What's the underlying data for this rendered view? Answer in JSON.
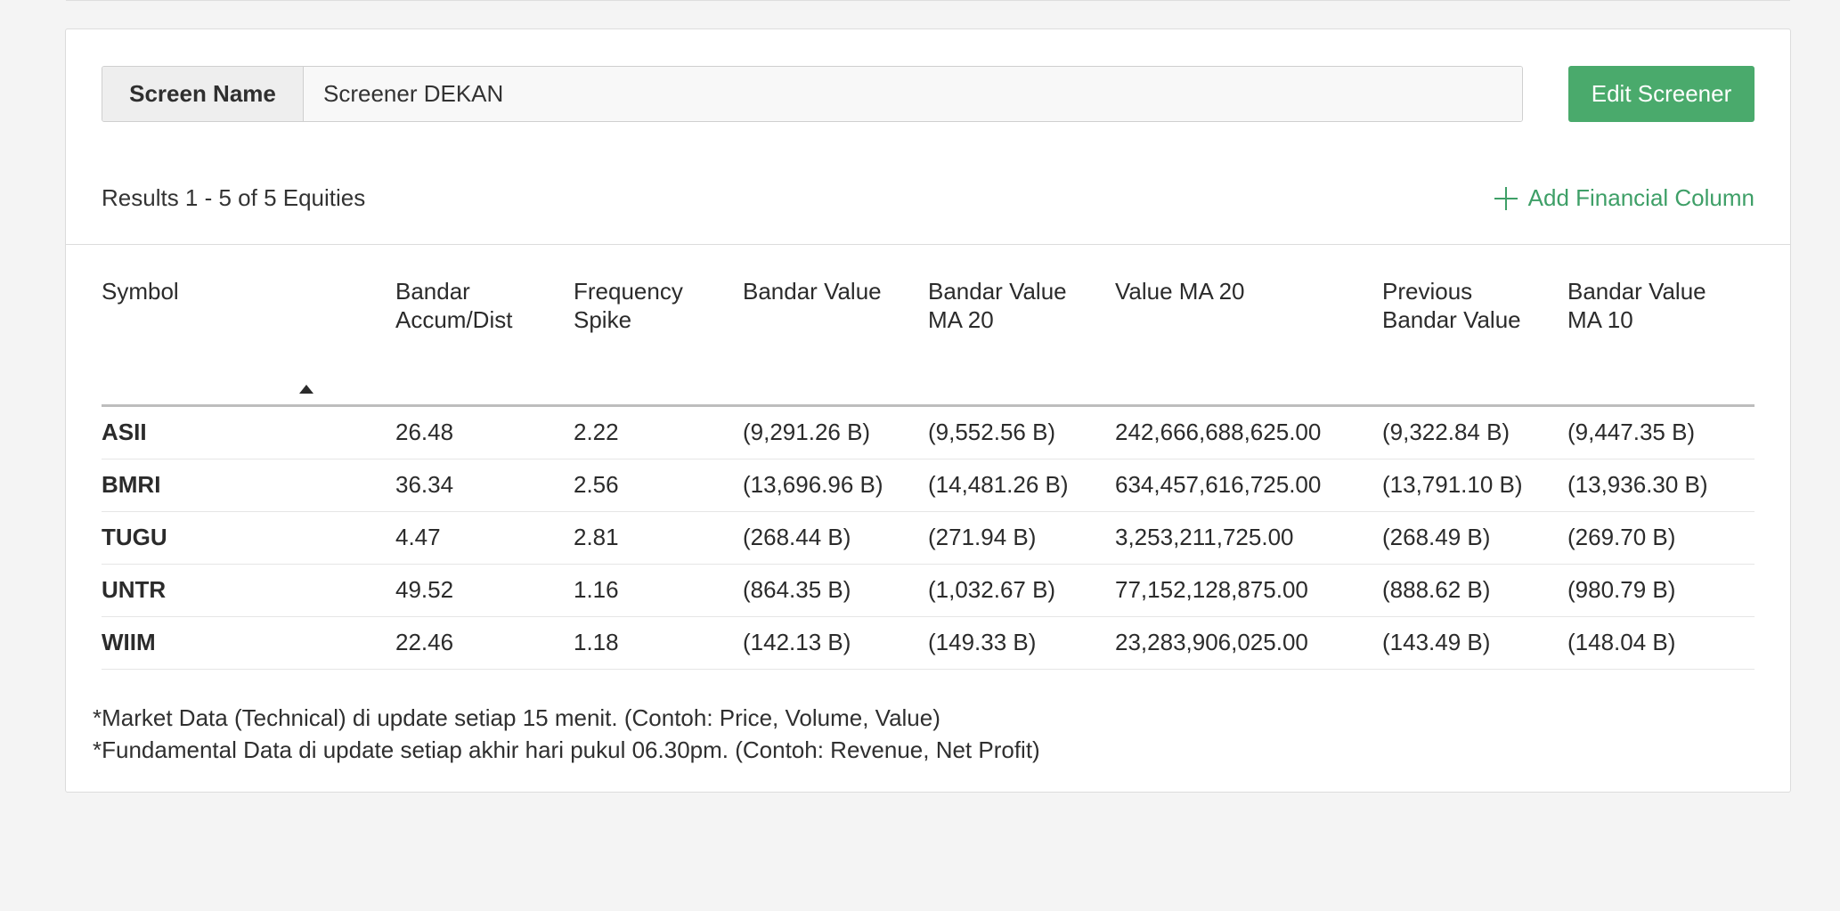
{
  "screen_name": {
    "label": "Screen Name",
    "value": "Screener DEKAN"
  },
  "edit_button": "Edit Screener",
  "results": {
    "text": "Results 1 - 5 of 5 Equities",
    "add_column": "Add Financial Column"
  },
  "table": {
    "columns": [
      "Symbol",
      "",
      "Bandar Accum/Dist",
      "Frequency Spike",
      "Bandar Value",
      "Bandar Value MA 20",
      "Value MA 20",
      "Previous Bandar Value",
      "Bandar Value MA 10"
    ],
    "rows": [
      [
        "ASII",
        "",
        "26.48",
        "2.22",
        "(9,291.26 B)",
        "(9,552.56 B)",
        "242,666,688,625.00",
        "(9,322.84 B)",
        "(9,447.35 B)"
      ],
      [
        "BMRI",
        "",
        "36.34",
        "2.56",
        "(13,696.96 B)",
        "(14,481.26 B)",
        "634,457,616,725.00",
        "(13,791.10 B)",
        "(13,936.30 B)"
      ],
      [
        "TUGU",
        "",
        "4.47",
        "2.81",
        "(268.44 B)",
        "(271.94 B)",
        "3,253,211,725.00",
        "(268.49 B)",
        "(269.70 B)"
      ],
      [
        "UNTR",
        "",
        "49.52",
        "1.16",
        "(864.35 B)",
        "(1,032.67 B)",
        "77,152,128,875.00",
        "(888.62 B)",
        "(980.79 B)"
      ],
      [
        "WIIM",
        "",
        "22.46",
        "1.18",
        "(142.13 B)",
        "(149.33 B)",
        "23,283,906,025.00",
        "(143.49 B)",
        "(148.04 B)"
      ]
    ]
  },
  "notes": [
    "*Market Data (Technical) di update setiap 15 menit. (Contoh: Price, Volume, Value)",
    "*Fundamental Data di update setiap akhir hari pukul 06.30pm. (Contoh: Revenue, Net Profit)"
  ],
  "colors": {
    "accent": "#4aaa6c",
    "link": "#3e9f67"
  },
  "icons": {
    "add": "plus-icon",
    "sort": "sort-ascending-icon"
  }
}
